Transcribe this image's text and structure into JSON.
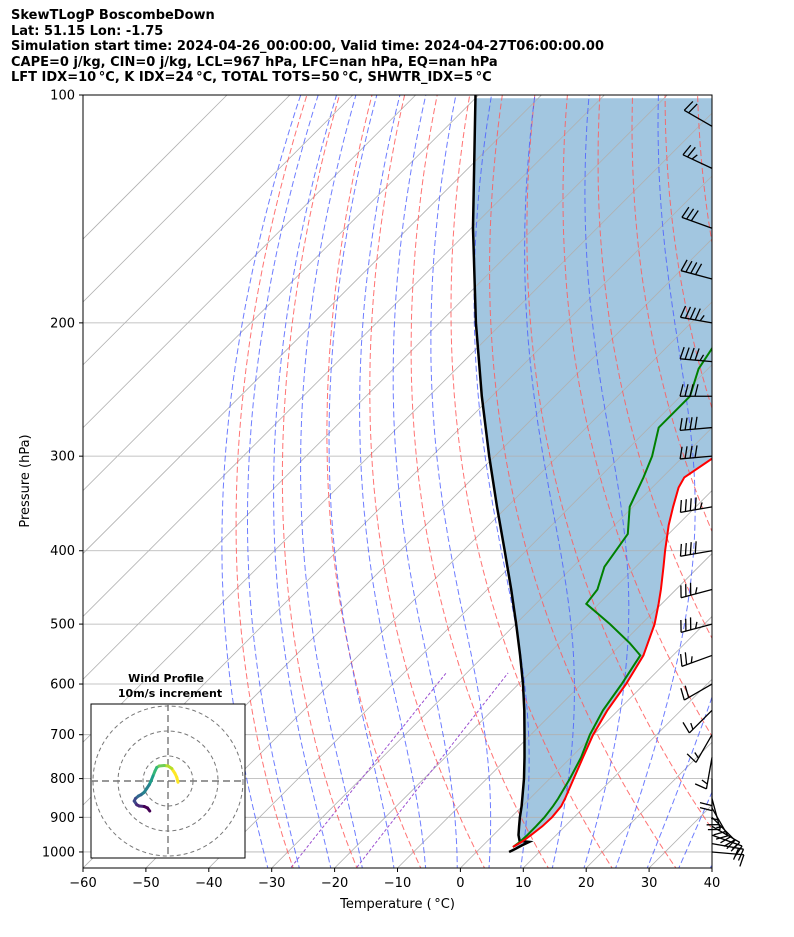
{
  "header": {
    "lines": [
      "SkewTLogP BoscombeDown",
      "Lat: 51.15   Lon: -1.75",
      "Simulation start time: 2024-04-26_00:00:00, Valid time: 2024-04-27T06:00:00.00",
      "CAPE=0 j/kg, CIN=0 j/kg, LCL=967 hPa, LFC=nan hPa, EQ=nan hPa",
      "LFT IDX=10 °C, K IDX=24 °C, TOTAL TOTS=50 °C, SHWTR_IDX=5 °C"
    ]
  },
  "chart_data": {
    "type": "line",
    "xlabel": "Temperature ( °C)",
    "ylabel": "Pressure (hPa)",
    "xlim": [
      -60,
      40
    ],
    "ylim": [
      1050,
      100
    ],
    "y_scale": "log",
    "skew": "45 degrees",
    "x_ticks": [
      -60,
      -50,
      -40,
      -30,
      -20,
      -10,
      0,
      10,
      20,
      30,
      40
    ],
    "y_ticks": [
      100,
      200,
      300,
      400,
      500,
      600,
      700,
      800,
      900,
      1000
    ],
    "grid": true,
    "colors": {
      "temperature": "#ff0000",
      "dewpoint": "#008000",
      "parcel": "#000000",
      "shading": "#a2c6e0",
      "dry_adiabats": "#ff5a5a",
      "moist_adiabats": "#4a5cff",
      "mixing_ratio": "#9b4fd0",
      "isotherms": "#b0b0b0"
    },
    "series": [
      {
        "key": "temperature",
        "pressure": [
          985,
          970,
          950,
          925,
          900,
          870,
          850,
          800,
          750,
          700,
          650,
          600,
          550,
          500,
          470,
          450,
          420,
          400,
          370,
          350,
          330,
          320,
          300,
          290,
          270,
          250,
          230,
          210,
          195,
          180,
          165,
          150,
          140,
          125,
          110,
          100
        ],
        "values": [
          5.0,
          5.6,
          6.0,
          6.4,
          6.5,
          6.2,
          5.6,
          3.8,
          1.9,
          -0.1,
          -1.7,
          -2.9,
          -4.7,
          -7.9,
          -10.5,
          -12.4,
          -15.6,
          -17.9,
          -21.4,
          -23.6,
          -25.8,
          -26.5,
          -24.9,
          -24.6,
          -25.2,
          -28.0,
          -30.5,
          -33.6,
          -36.0,
          -37.6,
          -39.8,
          -42.0,
          -44.0,
          -47.7,
          -51.4,
          -54.0
        ]
      },
      {
        "key": "dewpoint",
        "pressure": [
          985,
          970,
          950,
          925,
          900,
          870,
          850,
          800,
          750,
          700,
          650,
          600,
          550,
          530,
          500,
          470,
          450,
          420,
          380,
          350,
          320,
          300,
          275,
          250,
          230,
          200,
          180,
          160,
          140,
          120,
          100
        ],
        "values": [
          5.0,
          5.3,
          5.4,
          5.4,
          5.3,
          4.9,
          4.5,
          3.2,
          1.6,
          -0.6,
          -2.4,
          -3.6,
          -5.2,
          -8.8,
          -15.0,
          -22.0,
          -22.5,
          -25.0,
          -26.5,
          -30.5,
          -33.0,
          -35.0,
          -38.5,
          -38.5,
          -41.5,
          -44.0,
          -46.0,
          -50.0,
          -53.0,
          -55.0,
          -57.5
        ]
      },
      {
        "key": "parcel",
        "pressure": [
          1000,
          990,
          980,
          970,
          967,
          950,
          925,
          900,
          870,
          850,
          800,
          750,
          700,
          650,
          600,
          550,
          500,
          450,
          400,
          350,
          300,
          250,
          200,
          150,
          100
        ],
        "values": [
          5.2,
          5.7,
          6.2,
          6.8,
          5.1,
          4.0,
          2.7,
          1.4,
          -0.1,
          -1.2,
          -4.1,
          -7.4,
          -11.0,
          -14.9,
          -19.3,
          -24.3,
          -29.9,
          -36.2,
          -43.4,
          -51.6,
          -60.9,
          -71.6,
          -84.2,
          -99.7,
          -120.5
        ]
      }
    ],
    "wind_barbs": {
      "pressure": [
        1000,
        975,
        950,
        925,
        900,
        875,
        850,
        800,
        750,
        700,
        650,
        600,
        550,
        500,
        450,
        400,
        350,
        300,
        275,
        250,
        225,
        200,
        175,
        150,
        125,
        110
      ],
      "speed_kt": [
        12,
        22,
        18,
        20,
        22,
        25,
        25,
        20,
        15,
        15,
        15,
        20,
        25,
        35,
        35,
        40,
        45,
        40,
        40,
        40,
        45,
        45,
        40,
        30,
        25,
        20
      ],
      "direction_deg": [
        95,
        100,
        110,
        120,
        135,
        150,
        165,
        180,
        190,
        210,
        225,
        240,
        250,
        255,
        255,
        260,
        260,
        265,
        265,
        270,
        275,
        280,
        285,
        290,
        295,
        300
      ]
    }
  },
  "hodograph": {
    "title": "Wind Profile",
    "subtitle": "10m/s increment",
    "u_ms": [
      4.0,
      3.5,
      2.8,
      1.5,
      0.0,
      -1.5,
      -3.5,
      -4.5,
      -5.2,
      -6.0,
      -6.8,
      -7.5,
      -8.5,
      -9.5,
      -10.8,
      -11.8,
      -13.0,
      -13.5,
      -12.5,
      -11.5,
      -9.5,
      -8.2,
      -7.3
    ],
    "v_ms": [
      -0.5,
      1.5,
      3.0,
      5.0,
      6.0,
      6.2,
      6.0,
      5.4,
      4.0,
      2.0,
      0.0,
      -1.5,
      -3.0,
      -4.5,
      -5.5,
      -6.0,
      -7.0,
      -8.0,
      -9.5,
      -10.0,
      -10.2,
      -10.8,
      -12.0
    ],
    "rings_ms": [
      10,
      20,
      30
    ]
  }
}
